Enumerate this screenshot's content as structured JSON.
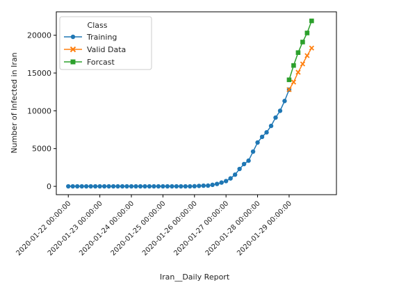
{
  "chart_data": {
    "type": "line",
    "title": "",
    "xlabel": "Iran__Daily Report",
    "ylabel": "Number of Infected in Iran",
    "x_ticks": [
      {
        "value": 0,
        "label": "2020-01-22 00:00:00"
      },
      {
        "value": 1,
        "label": "2020-01-23 00:00:00"
      },
      {
        "value": 2,
        "label": "2020-01-24 00:00:00"
      },
      {
        "value": 3,
        "label": "2020-01-25 00:00:00"
      },
      {
        "value": 4,
        "label": "2020-01-26 00:00:00"
      },
      {
        "value": 5,
        "label": "2020-01-27 00:00:00"
      },
      {
        "value": 6,
        "label": "2020-01-28 00:00:00"
      },
      {
        "value": 7,
        "label": "2020-01-29 00:00:00"
      }
    ],
    "xlim": [
      -0.38,
      8.5
    ],
    "ylim": [
      -1100,
      23100
    ],
    "y_ticks": [
      0,
      5000,
      10000,
      15000,
      20000
    ],
    "grid": false,
    "legend": {
      "title": "Class",
      "position": "top-left"
    },
    "series": [
      {
        "name": "Training",
        "color": "#1f77b4",
        "marker": "circle",
        "x": [
          0,
          0.143,
          0.286,
          0.429,
          0.571,
          0.714,
          0.857,
          1,
          1.143,
          1.286,
          1.429,
          1.571,
          1.714,
          1.857,
          2,
          2.143,
          2.286,
          2.429,
          2.571,
          2.714,
          2.857,
          3,
          3.143,
          3.286,
          3.429,
          3.571,
          3.714,
          3.857,
          4,
          4.143,
          4.286,
          4.429,
          4.571,
          4.714,
          4.857,
          5,
          5.143,
          5.286,
          5.429,
          5.571,
          5.714,
          5.857,
          6,
          6.143,
          6.286,
          6.429,
          6.571,
          6.714,
          6.857,
          7
        ],
        "y": [
          0,
          0,
          0,
          0,
          0,
          0,
          0,
          0,
          0,
          0,
          0,
          0,
          0,
          0,
          0,
          0,
          0,
          0,
          0,
          0,
          0,
          0,
          0,
          0,
          0,
          0,
          0,
          0,
          20,
          60,
          90,
          100,
          200,
          320,
          500,
          700,
          1050,
          1550,
          2300,
          2950,
          3400,
          4600,
          5800,
          6550,
          7150,
          8000,
          9100,
          10000,
          11300,
          12800
        ]
      },
      {
        "name": "Valid Data",
        "color": "#ff7f0e",
        "marker": "x",
        "x": [
          7,
          7.143,
          7.286,
          7.429,
          7.571,
          7.714
        ],
        "y": [
          12800,
          13800,
          15100,
          16200,
          17300,
          18300
        ]
      },
      {
        "name": "Forcast",
        "color": "#2ca02c",
        "marker": "square",
        "x": [
          7,
          7.143,
          7.286,
          7.429,
          7.571,
          7.714
        ],
        "y": [
          14100,
          16000,
          17700,
          19100,
          20300,
          21900
        ]
      }
    ]
  }
}
